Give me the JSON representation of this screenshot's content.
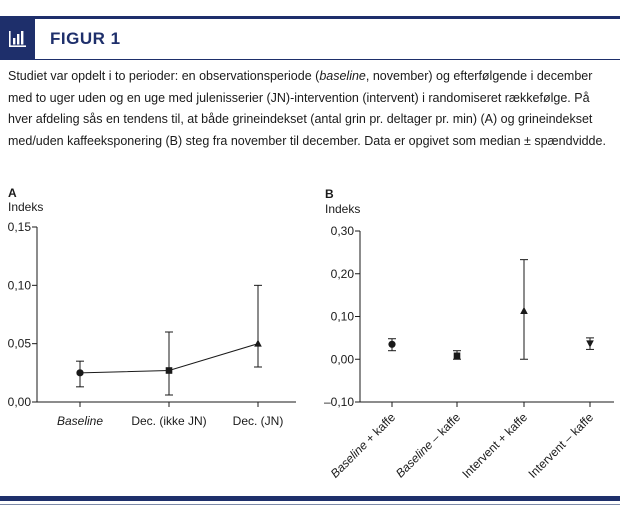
{
  "header": {
    "title": "FIGUR 1",
    "icon": "bar-chart-icon",
    "accent_color": "#1e2f6b"
  },
  "caption": {
    "p1": "Studiet var opdelt i to perioder: en observationsperiode (",
    "p1_italic": "baseline",
    "p2": ", november) og efterfølgende i december med to uger uden og en uge med julenisserier (JN)-intervention (intervent) i randomiseret rækkefølge. På hver afdeling sås en tendens til, at både grineindekset (antal grin pr. deltager pr. min) (A) og grineindekset med/uden kaffeeksponering (B) steg fra november til december. Data er opgivet som median ± spændvidde."
  },
  "chart_data": [
    {
      "panel": "A",
      "type": "line",
      "title": "",
      "xlabel": "",
      "ylabel": "Indeks",
      "categories": [
        "Baseline",
        "Dec. (ikke JN)",
        "Dec. (JN)"
      ],
      "category_italic": [
        true,
        false,
        false
      ],
      "markers": [
        "circle",
        "square",
        "triangle-up"
      ],
      "values": [
        0.025,
        0.027,
        0.05
      ],
      "error_low": [
        0.013,
        0.006,
        0.03
      ],
      "error_high": [
        0.035,
        0.06,
        0.1
      ],
      "ylim": [
        0.0,
        0.15
      ],
      "yticks": [
        0.0,
        0.05,
        0.1,
        0.15
      ],
      "ytick_labels": [
        "0,00",
        "0,05",
        "0,10",
        "0,15"
      ],
      "connect_points": true,
      "grid": false
    },
    {
      "panel": "B",
      "type": "scatter",
      "title": "",
      "xlabel": "",
      "ylabel": "Indeks",
      "categories": [
        "Baseline + kaffe",
        "Baseline – kaffe",
        "Intervent + kaffe",
        "Intervent – kaffe"
      ],
      "category_italic_word": [
        "Baseline",
        "Baseline",
        "",
        ""
      ],
      "markers": [
        "circle",
        "square",
        "triangle-up",
        "triangle-down"
      ],
      "values": [
        0.035,
        0.008,
        0.113,
        0.037
      ],
      "error_low": [
        0.02,
        0.0,
        0.0,
        0.023
      ],
      "error_high": [
        0.048,
        0.02,
        0.233,
        0.05
      ],
      "ylim": [
        -0.1,
        0.3
      ],
      "yticks": [
        -0.1,
        0.0,
        0.1,
        0.2,
        0.3
      ],
      "ytick_labels": [
        "–0,10",
        "0,00",
        "0,10",
        "0,20",
        "0,30"
      ],
      "connect_points": false,
      "grid": false
    }
  ]
}
